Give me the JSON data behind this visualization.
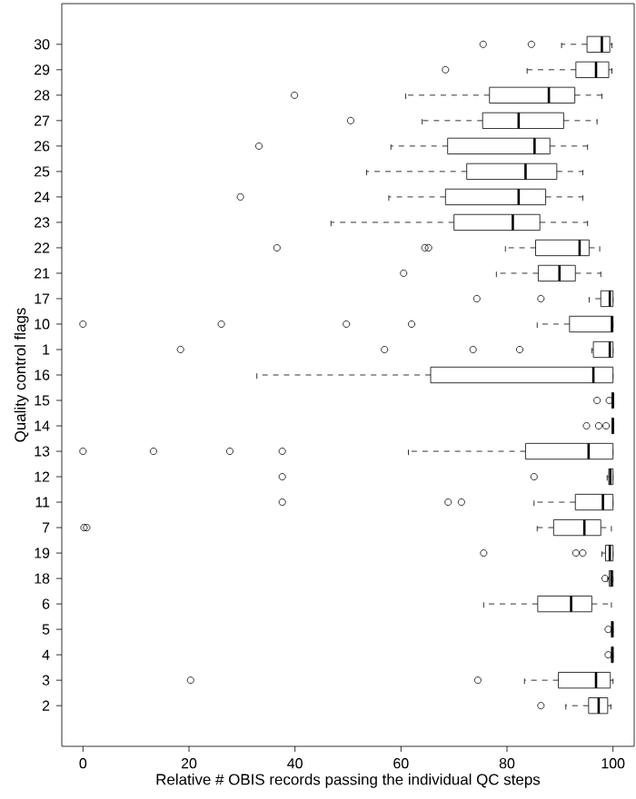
{
  "chart_data": {
    "type": "box",
    "orientation": "horizontal",
    "xlabel": "Relative # OBIS records passing the individual QC steps",
    "ylabel": "Quality control flags",
    "categories": [
      "30",
      "29",
      "28",
      "27",
      "26",
      "25",
      "24",
      "23",
      "22",
      "21",
      "17",
      "10",
      "1",
      "16",
      "15",
      "14",
      "13",
      "12",
      "11",
      "7",
      "19",
      "18",
      "6",
      "5",
      "4",
      "3",
      "2"
    ],
    "xlim": [
      -4,
      104
    ],
    "xticks": [
      0,
      20,
      40,
      60,
      80,
      100
    ],
    "boxes": [
      {
        "low": 90.3,
        "q1": 95.1,
        "median": 97.9,
        "q3": 99.4,
        "high": 99.8,
        "outliers": [
          75.5,
          84.6
        ]
      },
      {
        "low": 83.8,
        "q1": 93,
        "median": 96.8,
        "q3": 99.2,
        "high": 99.8,
        "outliers": [
          68.4
        ]
      },
      {
        "low": 60.9,
        "q1": 76.7,
        "median": 87.9,
        "q3": 92.8,
        "high": 97.9,
        "outliers": [
          39.9
        ]
      },
      {
        "low": 64,
        "q1": 75.4,
        "median": 82.2,
        "q3": 90.7,
        "high": 97,
        "outliers": [
          50.5
        ]
      },
      {
        "low": 58.1,
        "q1": 68.8,
        "median": 85.2,
        "q3": 88.1,
        "high": 95.2,
        "outliers": [
          33.2
        ]
      },
      {
        "low": 53.5,
        "q1": 72.4,
        "median": 83.5,
        "q3": 89.4,
        "high": 94.3
      },
      {
        "low": 57.7,
        "q1": 68.4,
        "median": 82.2,
        "q3": 87.3,
        "high": 94.3,
        "outliers": [
          29.7
        ]
      },
      {
        "low": 46.8,
        "q1": 70,
        "median": 81.1,
        "q3": 86.2,
        "high": 95.2
      },
      {
        "low": 79.7,
        "q1": 85.4,
        "median": 93.7,
        "q3": 95.5,
        "high": 97.5,
        "outliers": [
          36.6,
          64.5,
          65.2
        ]
      },
      {
        "low": 78,
        "q1": 85.9,
        "median": 89.9,
        "q3": 92.9,
        "high": 97.7,
        "outliers": [
          60.5
        ]
      },
      {
        "low": 95.5,
        "q1": 97.7,
        "median": 99.4,
        "q3": 100,
        "high": 100,
        "outliers": [
          74.3,
          86.4
        ]
      },
      {
        "low": 85.7,
        "q1": 91.8,
        "median": 99.8,
        "q3": 100,
        "high": 100,
        "outliers": [
          0,
          26.1,
          49.7,
          62
        ]
      },
      {
        "low": 96,
        "q1": 96.3,
        "median": 99.4,
        "q3": 100,
        "high": 100,
        "outliers": [
          18.4,
          56.9,
          73.6,
          82.4
        ]
      },
      {
        "low": 32.8,
        "q1": 65.6,
        "median": 96.3,
        "q3": 100,
        "high": 100
      },
      {
        "low": 99.8,
        "q1": 99.8,
        "median": 100,
        "q3": 100,
        "high": 100,
        "outliers": [
          97,
          99.3
        ]
      },
      {
        "low": 99.8,
        "q1": 99.8,
        "median": 100,
        "q3": 100,
        "high": 100,
        "outliers": [
          95,
          97.3,
          98.7
        ]
      },
      {
        "low": 61.4,
        "q1": 83.5,
        "median": 95.4,
        "q3": 100,
        "high": 100,
        "outliers": [
          0,
          13.3,
          27.7,
          37.6
        ]
      },
      {
        "low": 98.9,
        "q1": 99.2,
        "median": 99.5,
        "q3": 100,
        "high": 100,
        "outliers": [
          37.6,
          85.1
        ]
      },
      {
        "low": 85.1,
        "q1": 92.9,
        "median": 98.1,
        "q3": 100,
        "high": 100,
        "outliers": [
          37.6,
          68.9,
          71.4
        ]
      },
      {
        "low": 85.7,
        "q1": 88.8,
        "median": 94.6,
        "q3": 97.7,
        "high": 99.7,
        "outliers": [
          0.2,
          0.7
        ]
      },
      {
        "low": 97.9,
        "q1": 98.6,
        "median": 99.4,
        "q3": 100,
        "high": 100,
        "outliers": [
          75.6,
          93,
          94.3
        ]
      },
      {
        "low": 99,
        "q1": 99.3,
        "median": 99.7,
        "q3": 100,
        "high": 100,
        "outliers": [
          98.5
        ]
      },
      {
        "low": 75.6,
        "q1": 85.8,
        "median": 92.1,
        "q3": 96,
        "high": 99.7
      },
      {
        "low": 99.7,
        "q1": 99.7,
        "median": 99.9,
        "q3": 100,
        "high": 100,
        "outliers": [
          99.1
        ]
      },
      {
        "low": 99.7,
        "q1": 99.7,
        "median": 99.9,
        "q3": 100,
        "high": 100,
        "outliers": [
          99.1
        ]
      },
      {
        "low": 83.3,
        "q1": 89.7,
        "median": 96.8,
        "q3": 99.5,
        "high": 100,
        "outliers": [
          20.3,
          74.5
        ]
      },
      {
        "low": 91.1,
        "q1": 95.4,
        "median": 97.3,
        "q3": 99,
        "high": 99.6,
        "outliers": [
          86.4
        ]
      }
    ]
  }
}
